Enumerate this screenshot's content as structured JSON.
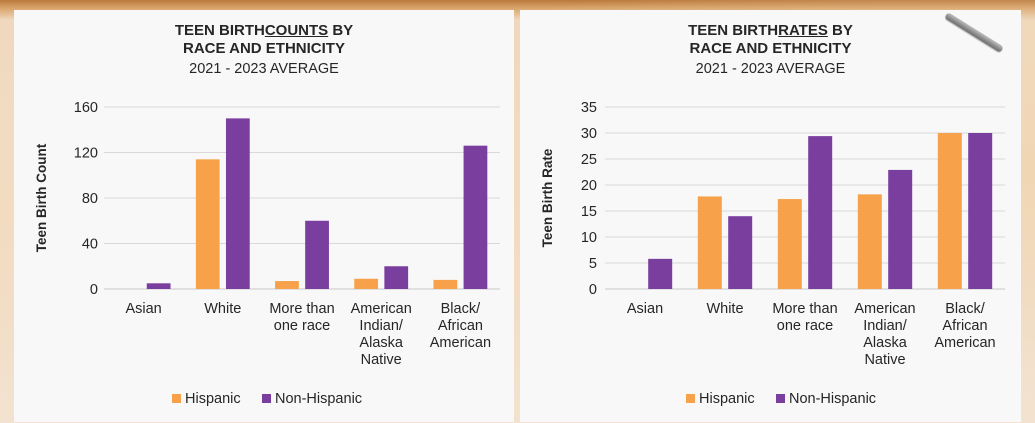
{
  "colors": {
    "hispanic": "#f7a24b",
    "non_hispanic": "#7a3f9e",
    "grid": "#d9d9d9",
    "text": "#262626"
  },
  "legend": {
    "hispanic": "Hispanic",
    "non_hispanic": "Non-Hispanic"
  },
  "chart_data": [
    {
      "type": "bar",
      "title_pre": "TEEN BIRTH",
      "title_underlined": "COUNTS",
      "title_post": " BY",
      "title_line2": "RACE AND ETHNICITY",
      "subtitle": "2021 - 2023 AVERAGE",
      "ylabel": "Teen Birth Count",
      "xlabel": "",
      "ylim": [
        0,
        160
      ],
      "yticks": [
        "0",
        "40",
        "80",
        "120",
        "160"
      ],
      "grid": true,
      "legend_position": "bottom",
      "categories": [
        [
          "Asian"
        ],
        [
          "White"
        ],
        [
          "More than",
          "one race"
        ],
        [
          "American",
          "Indian/",
          "Alaska",
          "Native"
        ],
        [
          "Black/",
          "African",
          "American"
        ]
      ],
      "series": [
        {
          "name": "Hispanic",
          "values": [
            0,
            114,
            7,
            9,
            8
          ]
        },
        {
          "name": "Non-Hispanic",
          "values": [
            5,
            150,
            60,
            20,
            126
          ]
        }
      ]
    },
    {
      "type": "bar",
      "title_pre": "TEEN BIRTH",
      "title_underlined": "RATES",
      "title_post": " BY",
      "title_line2": "RACE AND ETHNICITY",
      "subtitle": "2021 - 2023 AVERAGE",
      "ylabel": "Teen Birth Rate",
      "xlabel": "",
      "ylim": [
        0,
        35
      ],
      "yticks": [
        "0",
        "5",
        "10",
        "15",
        "20",
        "25",
        "30",
        "35"
      ],
      "grid": true,
      "legend_position": "bottom",
      "categories": [
        [
          "Asian"
        ],
        [
          "White"
        ],
        [
          "More than",
          "one race"
        ],
        [
          "American",
          "Indian/",
          "Alaska",
          "Native"
        ],
        [
          "Black/",
          "African",
          "American"
        ]
      ],
      "series": [
        {
          "name": "Hispanic",
          "values": [
            0,
            17.8,
            17.3,
            18.2,
            30
          ]
        },
        {
          "name": "Non-Hispanic",
          "values": [
            5.8,
            14,
            29.4,
            22.9,
            30
          ]
        }
      ]
    }
  ]
}
